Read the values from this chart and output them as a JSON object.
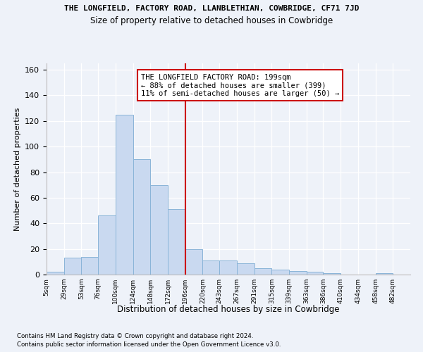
{
  "title": "THE LONGFIELD, FACTORY ROAD, LLANBLETHIAN, COWBRIDGE, CF71 7JD",
  "subtitle": "Size of property relative to detached houses in Cowbridge",
  "xlabel": "Distribution of detached houses by size in Cowbridge",
  "ylabel": "Number of detached properties",
  "footnote1": "Contains HM Land Registry data © Crown copyright and database right 2024.",
  "footnote2": "Contains public sector information licensed under the Open Government Licence v3.0.",
  "annotation_line1": "THE LONGFIELD FACTORY ROAD: 199sqm",
  "annotation_line2": "← 88% of detached houses are smaller (399)",
  "annotation_line3": "11% of semi-detached houses are larger (50) →",
  "property_line_x": 196,
  "bar_color": "#c9d9f0",
  "bar_edge_color": "#8ab4d8",
  "line_color": "#cc0000",
  "background_color": "#eef2f9",
  "categories": [
    "5sqm",
    "29sqm",
    "53sqm",
    "76sqm",
    "100sqm",
    "124sqm",
    "148sqm",
    "172sqm",
    "196sqm",
    "220sqm",
    "243sqm",
    "267sqm",
    "291sqm",
    "315sqm",
    "339sqm",
    "363sqm",
    "386sqm",
    "410sqm",
    "434sqm",
    "458sqm",
    "482sqm"
  ],
  "bin_edges": [
    5,
    29,
    53,
    76,
    100,
    124,
    148,
    172,
    196,
    220,
    243,
    267,
    291,
    315,
    339,
    363,
    386,
    410,
    434,
    458,
    482,
    506
  ],
  "values": [
    2,
    13,
    14,
    46,
    125,
    90,
    70,
    51,
    20,
    11,
    11,
    9,
    5,
    4,
    3,
    2,
    1,
    0,
    0,
    1,
    0
  ],
  "ylim": [
    0,
    165
  ],
  "yticks": [
    0,
    20,
    40,
    60,
    80,
    100,
    120,
    140,
    160
  ]
}
